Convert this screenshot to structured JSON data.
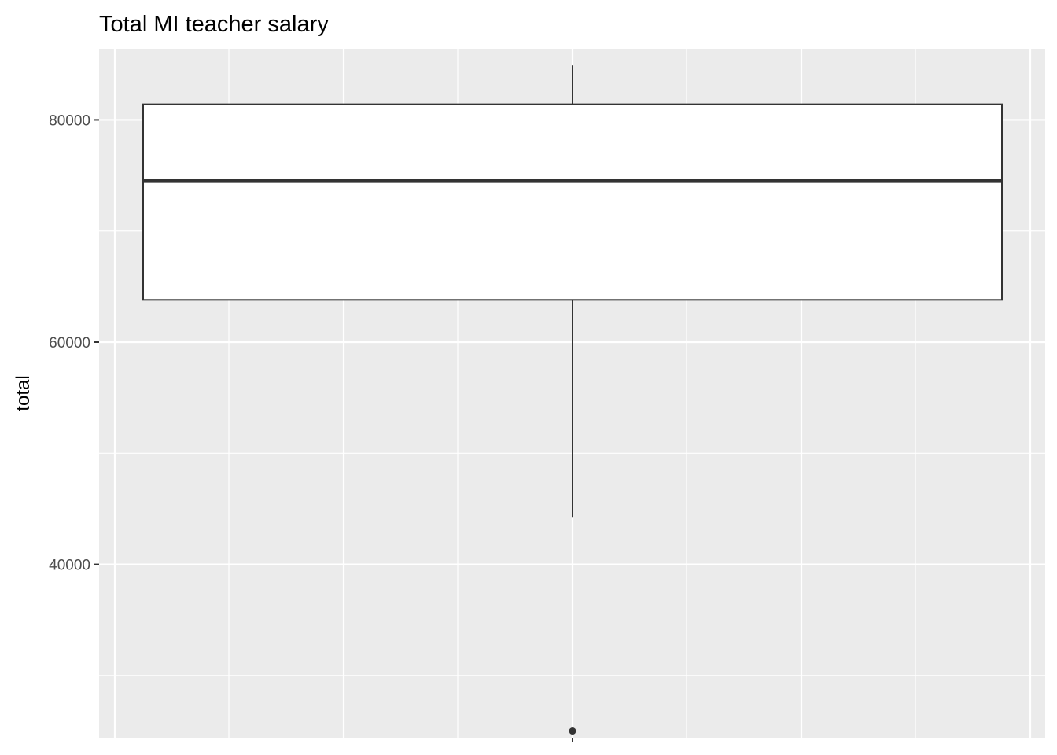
{
  "chart_data": {
    "type": "boxplot",
    "title": "Total MI teacher salary",
    "xlabel": "",
    "ylabel": "total",
    "ylim": [
      24400,
      86400
    ],
    "y_ticks": [
      40000,
      60000,
      80000
    ],
    "y_tick_labels": [
      "40000",
      "60000",
      "80000"
    ],
    "y_minor_ticks": [
      30000,
      50000,
      70000
    ],
    "grid": true,
    "box": {
      "min": 44200,
      "q1": 63800,
      "median": 74500,
      "q3": 81400,
      "max": 84900,
      "outliers": [
        25000
      ]
    },
    "colors": {
      "panel_background": "#ebebeb",
      "grid": "#ffffff",
      "box_fill": "#ffffff",
      "box_stroke": "#333333",
      "tick_text": "#4d4d4d"
    }
  }
}
